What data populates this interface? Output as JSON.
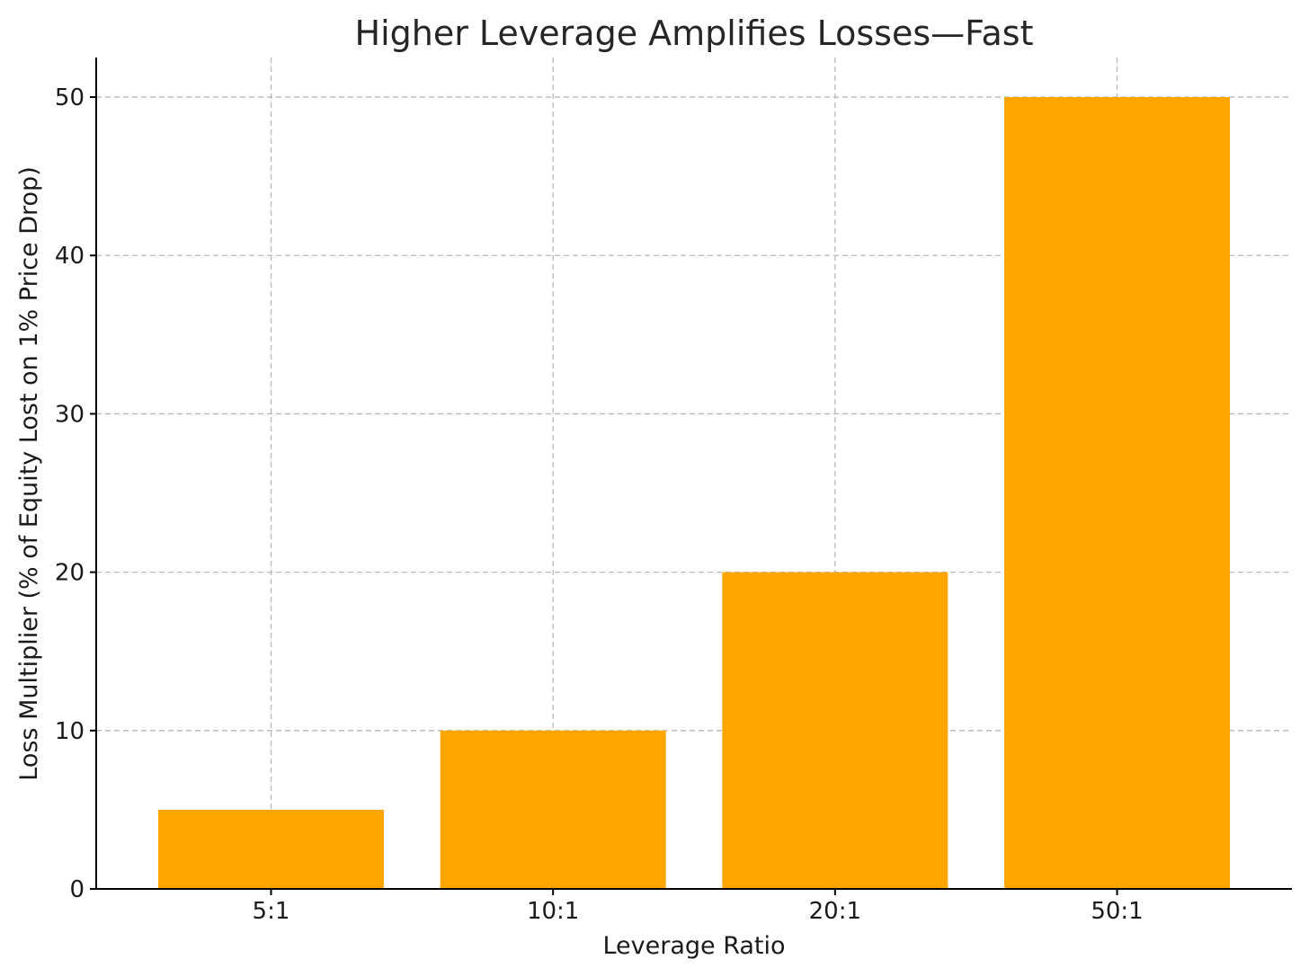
{
  "chart_data": {
    "type": "bar",
    "title": "Higher Leverage Amplifies Losses—Fast",
    "xlabel": "Leverage Ratio",
    "ylabel": "Loss Multiplier (% of Equity Lost on 1% Price Drop)",
    "categories": [
      "5:1",
      "10:1",
      "20:1",
      "50:1"
    ],
    "values": [
      5,
      10,
      20,
      50
    ],
    "ylim": [
      0,
      52.5
    ],
    "yticks": [
      0,
      10,
      20,
      30,
      40,
      50
    ],
    "grid": true,
    "bar_color": "#FFA500"
  }
}
